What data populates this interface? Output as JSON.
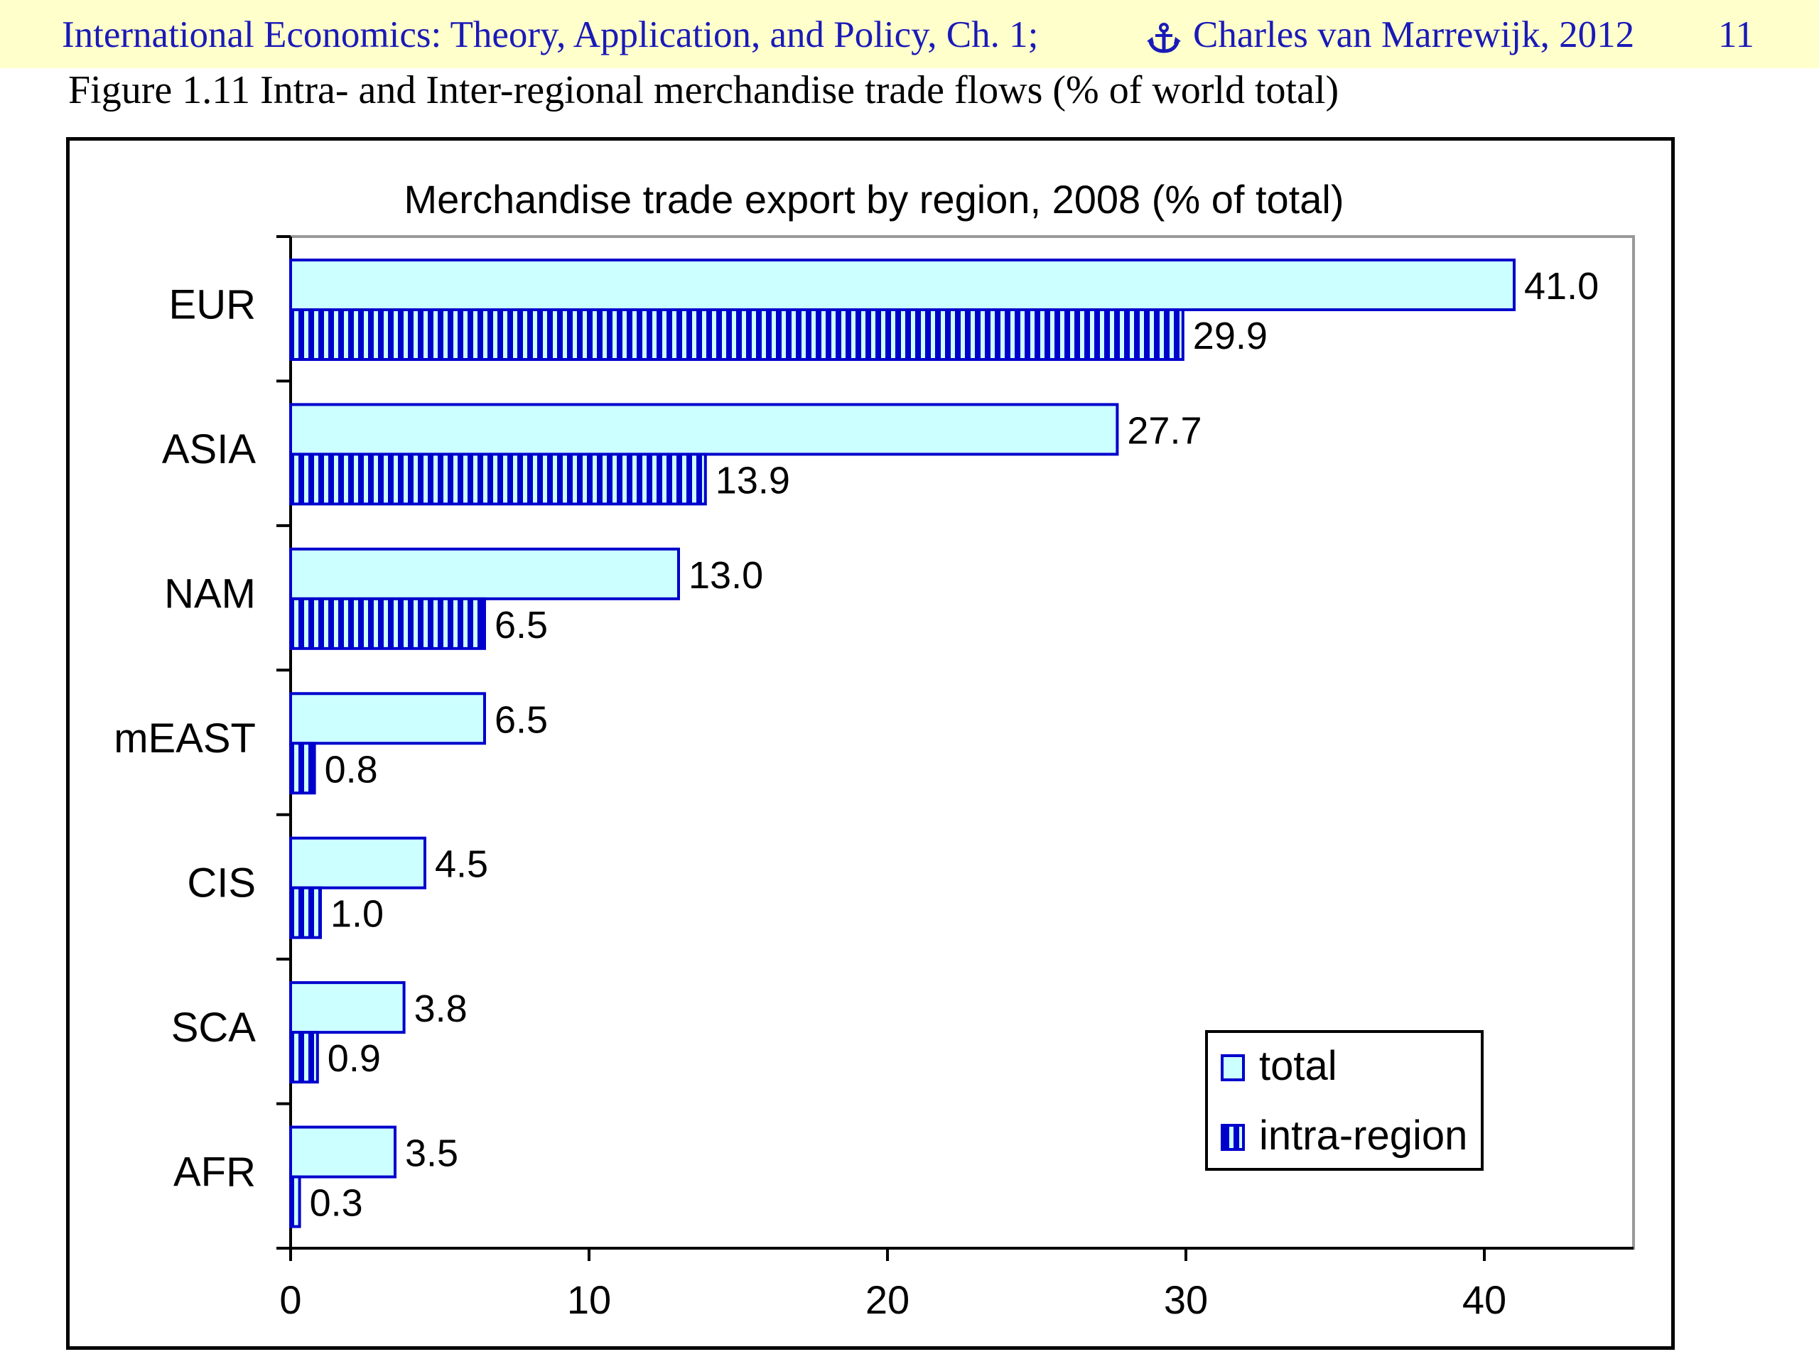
{
  "header": {
    "book_title": "International Economics: Theory, Application, and Policy, Ch. 1;",
    "copyright_icon": "anchor-icon",
    "author_year": "Charles van Marrewijk, 2012",
    "page_number": "11"
  },
  "figure": {
    "caption": "Figure 1.11 Intra- and Inter-regional merchandise trade flows (% of world total)"
  },
  "colors": {
    "header_bg": "#ffffcc",
    "header_text": "#1a1ab8",
    "bar_fill": "#ccffff",
    "bar_stroke": "#0000cc",
    "stripe": "#0000cc"
  },
  "chart_data": {
    "type": "bar",
    "orientation": "horizontal",
    "title": "Merchandise trade export by region, 2008 (% of total)",
    "categories": [
      "EUR",
      "ASIA",
      "NAM",
      "mEAST",
      "CIS",
      "SCA",
      "AFR"
    ],
    "series": [
      {
        "name": "total",
        "values": [
          41.0,
          27.7,
          13.0,
          6.5,
          4.5,
          3.8,
          3.5
        ],
        "labels": [
          "41.0",
          "27.7",
          "13.0",
          "6.5",
          "4.5",
          "3.8",
          "3.5"
        ]
      },
      {
        "name": "intra-region",
        "values": [
          29.9,
          13.9,
          6.5,
          0.8,
          1.0,
          0.9,
          0.3
        ],
        "labels": [
          "29.9",
          "13.9",
          "6.5",
          "0.8",
          "1.0",
          "0.9",
          "0.3"
        ]
      }
    ],
    "xlim": [
      0,
      45
    ],
    "xticks": [
      0,
      10,
      20,
      30,
      40
    ],
    "xlabel": "",
    "ylabel": "",
    "grid": false,
    "legend_position": "bottom-right"
  }
}
